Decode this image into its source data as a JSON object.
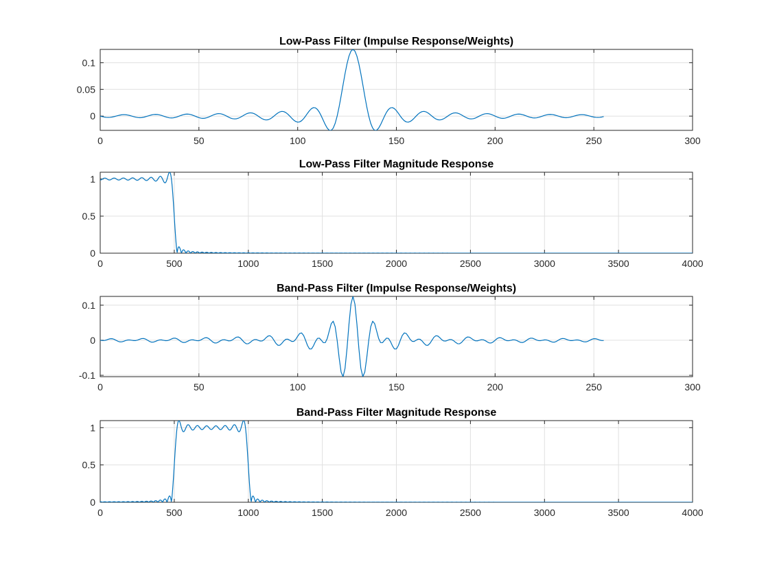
{
  "figure": {
    "background": "#ffffff",
    "kind": "matlab-style-figure",
    "subplot_count": 4
  },
  "colors": {
    "line": "#0072BD",
    "axis_box": "#262626",
    "grid": "#e0e0e0",
    "tick_label": "#262626",
    "title": "#000000"
  },
  "chart_data": [
    {
      "type": "line",
      "title": "Low-Pass Filter (Impulse Response/Weights)",
      "xlabel": "",
      "ylabel": "",
      "xlim": [
        0,
        300
      ],
      "xticks": [
        0,
        50,
        100,
        150,
        200,
        250,
        300
      ],
      "yticks": [
        0,
        0.05,
        0.1
      ],
      "ylim_estimate": [
        -0.026,
        0.125
      ],
      "grid": true,
      "legend": null,
      "line_color": "#0072BD",
      "series": [
        {
          "name": "lowpass_impulse_response",
          "kind": "impulse",
          "filter_type": "lowpass",
          "num_taps": 256,
          "center_tap": 128,
          "cutoff_hz": [
            500
          ],
          "sample_rate_hz": 8000,
          "peak_value": 0.125,
          "peak_at_sample": 128,
          "x_data_range": [
            0,
            255
          ]
        }
      ]
    },
    {
      "type": "line",
      "title": "Low-Pass Filter Magnitude Response",
      "xlabel": "",
      "ylabel": "",
      "xlim": [
        0,
        4000
      ],
      "xticks": [
        0,
        500,
        1000,
        1500,
        2000,
        2500,
        3000,
        3500,
        4000
      ],
      "yticks": [
        0,
        0.5,
        1
      ],
      "ylim_estimate": [
        0,
        1.09
      ],
      "grid": true,
      "legend": null,
      "line_color": "#0072BD",
      "series": [
        {
          "name": "lowpass_magnitude_response",
          "kind": "magnitude",
          "filter_type": "lowpass",
          "num_taps": 256,
          "center_tap": 128,
          "cutoff_hz": [
            500
          ],
          "sample_rate_hz": 8000,
          "passband_level": 1,
          "passband_edge_hz": 500,
          "gibbs_overshoot": 1.089
        }
      ]
    },
    {
      "type": "line",
      "title": "Band-Pass Filter (Impulse Response/Weights)",
      "xlabel": "",
      "ylabel": "",
      "xlim": [
        0,
        300
      ],
      "xticks": [
        0,
        50,
        100,
        150,
        200,
        250,
        300
      ],
      "yticks": [
        -0.1,
        0,
        0.1
      ],
      "ylim_estimate": [
        -0.104,
        0.125
      ],
      "grid": true,
      "legend": null,
      "line_color": "#0072BD",
      "series": [
        {
          "name": "bandpass_impulse_response",
          "kind": "impulse",
          "filter_type": "bandpass",
          "num_taps": 256,
          "center_tap": 128,
          "cutoff_hz": [
            500,
            1000
          ],
          "sample_rate_hz": 8000,
          "peak_value": 0.125,
          "peak_at_sample": 128,
          "x_data_range": [
            0,
            255
          ]
        }
      ]
    },
    {
      "type": "line",
      "title": "Band-Pass Filter Magnitude Response",
      "xlabel": "",
      "ylabel": "",
      "xlim": [
        0,
        4000
      ],
      "xticks": [
        0,
        500,
        1000,
        1500,
        2000,
        2500,
        3000,
        3500,
        4000
      ],
      "yticks": [
        0,
        0.5,
        1
      ],
      "ylim_estimate": [
        0,
        1.09
      ],
      "grid": true,
      "legend": null,
      "line_color": "#0072BD",
      "series": [
        {
          "name": "bandpass_magnitude_response",
          "kind": "magnitude",
          "filter_type": "bandpass",
          "num_taps": 256,
          "center_tap": 128,
          "cutoff_hz": [
            500,
            1000
          ],
          "sample_rate_hz": 8000,
          "passband_level": 1,
          "passband_edges_hz": [
            500,
            1000
          ],
          "gibbs_overshoot": 1.089
        }
      ]
    }
  ]
}
